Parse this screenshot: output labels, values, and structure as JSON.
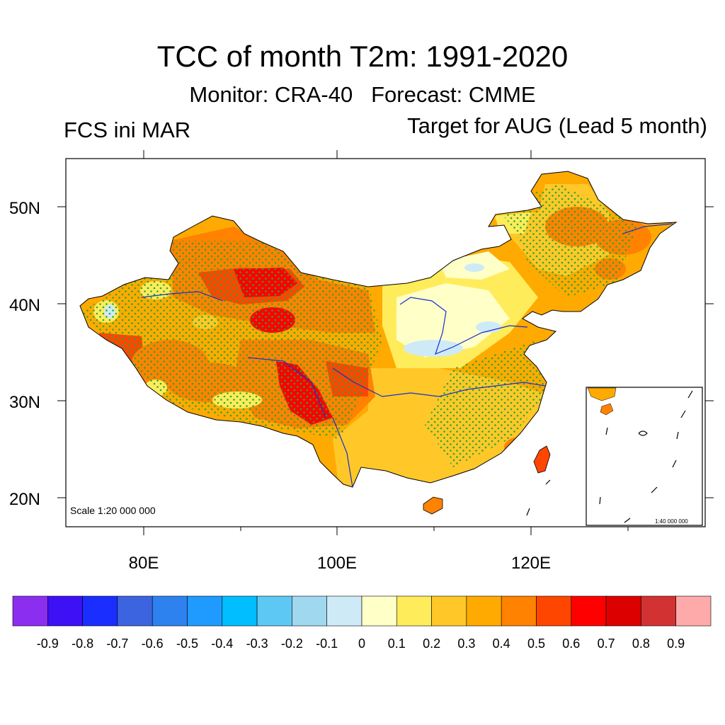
{
  "title": "TCC of month T2m: 1991-2020",
  "subtitle": "Monitor: CRA-40   Forecast: CMME",
  "left_label": "FCS ini MAR",
  "right_label": "Target for AUG (Lead 5 month)",
  "map": {
    "lat_ticks": [
      "50N",
      "40N",
      "30N",
      "20N"
    ],
    "lon_ticks": [
      "80E",
      "100E",
      "120E"
    ],
    "scale_main": "Scale 1:20 000 000",
    "scale_inset": "1:40 000 000"
  },
  "colorbar": {
    "colors": [
      "#8c2ef0",
      "#3d10f5",
      "#1a2eff",
      "#3d64e0",
      "#2e82f0",
      "#1f9bff",
      "#00beff",
      "#5ec8f5",
      "#a0d8f0",
      "#cfeaf7",
      "#ffffc8",
      "#ffec5a",
      "#ffc828",
      "#ffaa00",
      "#ff8200",
      "#ff4600",
      "#ff0000",
      "#dc0000",
      "#d23232",
      "#ffaaaa"
    ],
    "labels": [
      "-0.9",
      "-0.8",
      "-0.7",
      "-0.6",
      "-0.5",
      "-0.4",
      "-0.3",
      "-0.2",
      "-0.1",
      "0",
      "0.1",
      "0.2",
      "0.3",
      "0.4",
      "0.5",
      "0.6",
      "0.7",
      "0.8",
      "0.9"
    ]
  }
}
